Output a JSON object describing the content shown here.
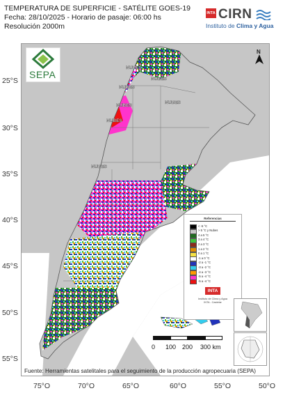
{
  "header": {
    "title": "TEMPERATURA DE SUPERFICIE - SATÉLITE GOES-19",
    "date_line": "Fecha: 28/10/2025 - Horario de pasaje: 06:00 hs",
    "resolution": "Resolución 2000m"
  },
  "logo_cirn": {
    "inta": "INTA",
    "name": "CIRN",
    "institute_prefix": "Instituto de ",
    "institute_bold": "Clima y Agua"
  },
  "logo_sepa": {
    "name": "SEPA"
  },
  "north_arrow": {
    "label": "N"
  },
  "latitudes": [
    "25°S",
    "30°S",
    "35°S",
    "40°S",
    "45°S",
    "50°S",
    "55°S"
  ],
  "longitudes": [
    "75°O",
    "70°O",
    "65°O",
    "60°O",
    "55°O",
    "50°O"
  ],
  "cloud_labels": [
    "NUBES",
    "NUBES",
    "NUBES",
    "NUBES",
    "NUBES",
    "NUBES",
    "NUBES"
  ],
  "legend": {
    "title": "Referencias",
    "items": [
      {
        "label": "< -5 °C",
        "color": "#000000"
      },
      {
        "label": "> 5 °C y Nubes",
        "color": "#c8c8c8"
      },
      {
        "label": "4 a 5 °C",
        "color": "#1f6b1f"
      },
      {
        "label": "3 a 4 °C",
        "color": "#3ec43e"
      },
      {
        "label": "2 a 3 °C",
        "color": "#8b2b1a"
      },
      {
        "label": "1 a 2 °C",
        "color": "#e08a00"
      },
      {
        "label": "0 a 1 °C",
        "color": "#f5e142"
      },
      {
        "label": "-1 a 0 °C",
        "color": "#ffffff"
      },
      {
        "label": "-2 a -1 °C",
        "color": "#2233bb"
      },
      {
        "label": "-3 a -2 °C",
        "color": "#33ccee"
      },
      {
        "label": "-4 a -3 °C",
        "color": "#ff9900"
      },
      {
        "label": "-5 a -4 °C",
        "color": "#ff33cc"
      },
      {
        "label": "-5 a -4 °C ",
        "color": "#ee1111"
      }
    ],
    "inta": "INTA",
    "credit_line1": "Instituto de Clima y Agua",
    "credit_line2": "INTA - Castelar"
  },
  "scale_bar": {
    "ticks": [
      "0",
      "100",
      "200",
      "300 km"
    ]
  },
  "source": "Fuente: Herramientas satelitales para el seguimiento de la producción agropecuaria (SEPA)",
  "colors": {
    "background_land": "#c6c6c6",
    "province_border": "#777777",
    "accent_green": "#2c7b3c",
    "inta_red": "#d62b2b"
  }
}
